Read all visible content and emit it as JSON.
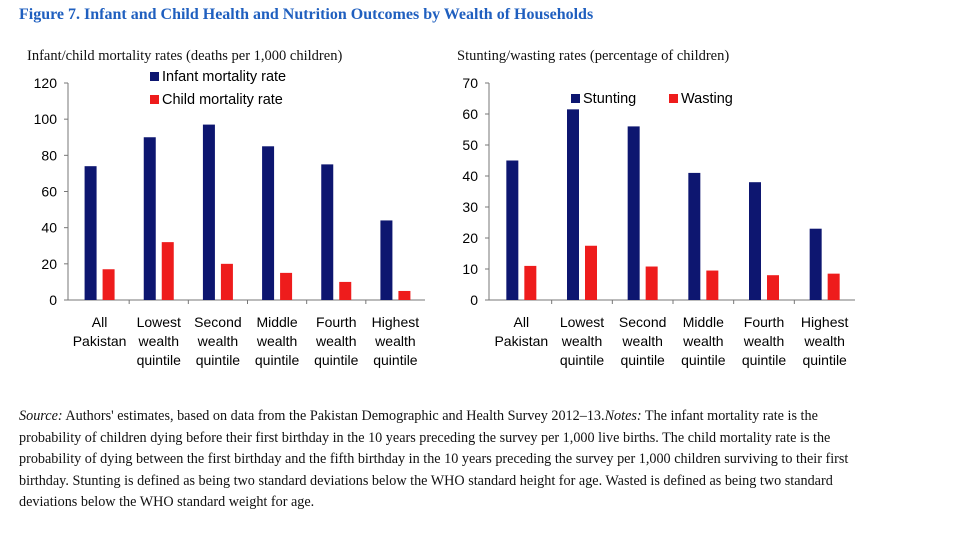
{
  "figure": {
    "title": "Figure 7. Infant and Child Health and Nutrition Outcomes by Wealth of Households"
  },
  "colors": {
    "title": "#1f5fbf",
    "series_dark": "#0d1670",
    "series_red": "#ee1c1c"
  },
  "chart_data": [
    {
      "type": "bar",
      "title": "Infant/child mortality rates (deaths per 1,000 children)",
      "categories": [
        [
          "All",
          "Pakistan"
        ],
        [
          "Lowest",
          "wealth",
          "quintile"
        ],
        [
          "Second",
          "wealth",
          "quintile"
        ],
        [
          "Middle",
          "wealth",
          "quintile"
        ],
        [
          "Fourth",
          "wealth",
          "quintile"
        ],
        [
          "Highest",
          "wealth",
          "quintile"
        ]
      ],
      "series": [
        {
          "name": "Infant mortality rate",
          "color": "#0d1670",
          "values": [
            74,
            90,
            97,
            85,
            75,
            44
          ]
        },
        {
          "name": "Child mortality rate",
          "color": "#ee1c1c",
          "values": [
            17,
            32,
            20,
            15,
            10,
            5
          ]
        }
      ],
      "ylim": [
        0,
        120
      ],
      "yticks": [
        0,
        20,
        40,
        60,
        80,
        100,
        120
      ],
      "xlabel": "",
      "ylabel": "",
      "grid": false,
      "legend": "top-left, stacked vertically"
    },
    {
      "type": "bar",
      "title": "Stunting/wasting rates (percentage of children)",
      "categories": [
        [
          "All",
          "Pakistan"
        ],
        [
          "Lowest",
          "wealth",
          "quintile"
        ],
        [
          "Second",
          "wealth",
          "quintile"
        ],
        [
          "Middle",
          "wealth",
          "quintile"
        ],
        [
          "Fourth",
          "wealth",
          "quintile"
        ],
        [
          "Highest",
          "wealth",
          "quintile"
        ]
      ],
      "series": [
        {
          "name": "Stunting",
          "color": "#0d1670",
          "values": [
            45,
            61.5,
            56,
            41,
            38,
            23
          ]
        },
        {
          "name": "Wasting",
          "color": "#ee1c1c",
          "values": [
            11,
            17.5,
            10.8,
            9.5,
            8,
            8.5
          ]
        }
      ],
      "ylim": [
        0,
        70
      ],
      "yticks": [
        0,
        10,
        20,
        30,
        40,
        50,
        60,
        70
      ],
      "xlabel": "",
      "ylabel": "",
      "grid": false,
      "legend": "top, horizontal"
    }
  ],
  "notes": {
    "source_label": "Source:",
    "source_text": " Authors' estimates, based on data from the Pakistan Demographic and Health Survey 2012–13.",
    "notes_label": "Notes:",
    "notes_text": " The infant mortality rate is the probability of children dying before their first birthday in the 10 years preceding the survey per 1,000 live births. The child mortality rate is the probability of dying between the first birthday and the fifth birthday in the 10 years preceding the survey per 1,000 children surviving to their first birthday. Stunting is defined as being two standard deviations below the WHO standard height for age. Wasted is defined as being two standard deviations below the WHO standard weight for age."
  }
}
